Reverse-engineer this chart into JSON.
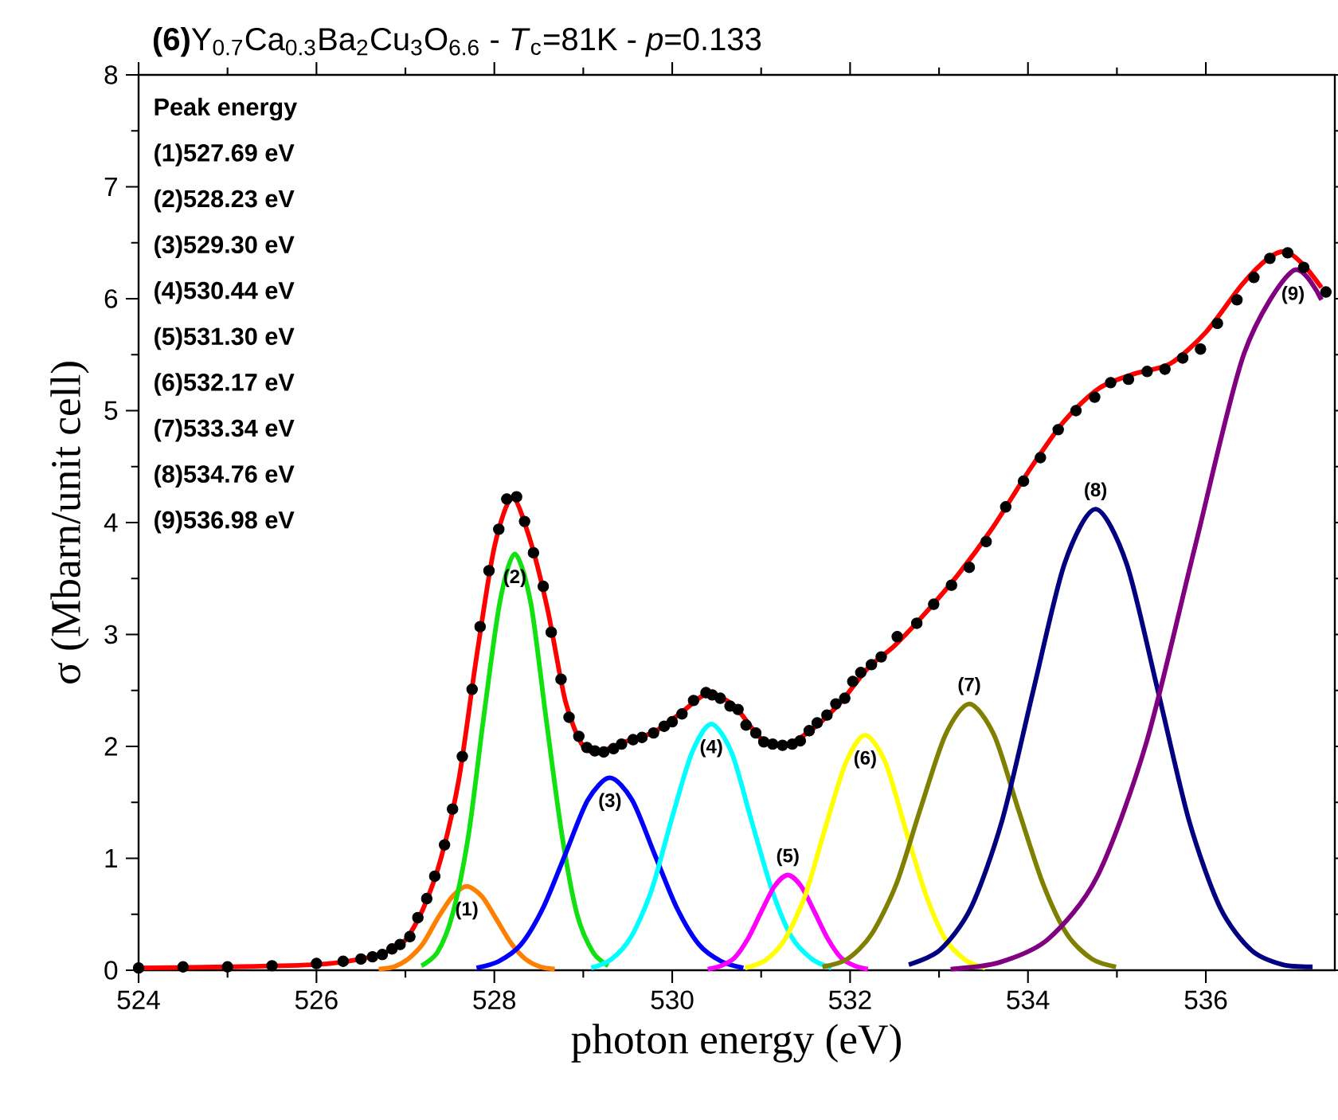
{
  "chart_data": {
    "type": "line",
    "title": "**(6)**Y$_{0.7}$Ca$_{0.3}$Ba$_{2}$Cu$_{3}$O$_{6.6}$ - *T*$_{c}$=81K - *p*=0.133",
    "xlabel": "photon energy (eV)",
    "ylabel": "σ (Mbarn/unit cell)",
    "xlim": [
      524,
      537.45
    ],
    "ylim": [
      0,
      8
    ],
    "xticks": [
      524,
      526,
      528,
      530,
      532,
      534,
      536
    ],
    "yticks": [
      0,
      1,
      2,
      3,
      4,
      5,
      6,
      7,
      8
    ],
    "annotations": [
      "Peak energy",
      "(1)527.69 eV",
      "(2)528.23 eV",
      "(3)529.30 eV",
      "(4)530.44 eV",
      "(5)531.30 eV",
      "(6)532.17 eV",
      "(7)533.34 eV",
      "(8)534.76 eV",
      "(9)536.98 eV"
    ],
    "series": [
      {
        "name": "(1)",
        "color": "#ff8000",
        "x": [
          526.7,
          526.87,
          527.03,
          527.2,
          527.36,
          527.53,
          527.69,
          527.86,
          528.02,
          528.19,
          528.35,
          528.52,
          528.68
        ],
        "values": [
          0.01,
          0.03,
          0.1,
          0.24,
          0.46,
          0.66,
          0.75,
          0.66,
          0.46,
          0.24,
          0.1,
          0.03,
          0.01
        ]
      },
      {
        "name": "(2)",
        "color": "#11e011",
        "x": [
          527.18,
          527.36,
          527.53,
          527.71,
          527.88,
          528.06,
          528.23,
          528.41,
          528.58,
          528.76,
          528.93,
          529.11,
          529.28
        ],
        "values": [
          0.04,
          0.16,
          0.5,
          1.21,
          2.26,
          3.28,
          3.72,
          3.28,
          2.26,
          1.21,
          0.5,
          0.16,
          0.04
        ]
      },
      {
        "name": "(3)",
        "color": "#0000ff",
        "x": [
          527.8,
          528.05,
          528.3,
          528.55,
          528.8,
          529.05,
          529.3,
          529.55,
          529.8,
          530.05,
          530.3,
          530.55,
          530.8
        ],
        "values": [
          0.02,
          0.08,
          0.23,
          0.56,
          1.04,
          1.52,
          1.72,
          1.52,
          1.04,
          0.56,
          0.23,
          0.08,
          0.02
        ]
      },
      {
        "name": "(4)",
        "color": "#00ffff",
        "x": [
          529.09,
          529.32,
          529.54,
          529.77,
          529.99,
          530.22,
          530.44,
          530.67,
          530.89,
          531.12,
          531.34,
          531.57,
          531.79
        ],
        "values": [
          0.02,
          0.1,
          0.3,
          0.72,
          1.34,
          1.94,
          2.2,
          1.94,
          1.34,
          0.72,
          0.3,
          0.1,
          0.02
        ]
      },
      {
        "name": "(5)",
        "color": "#ff00ff",
        "x": [
          530.4,
          530.55,
          530.7,
          530.85,
          531.0,
          531.15,
          531.3,
          531.45,
          531.6,
          531.75,
          531.9,
          532.05,
          532.2
        ],
        "values": [
          0.01,
          0.04,
          0.11,
          0.28,
          0.52,
          0.75,
          0.85,
          0.75,
          0.52,
          0.28,
          0.11,
          0.04,
          0.01
        ]
      },
      {
        "name": "(6)",
        "color": "#ffff00",
        "x": [
          530.82,
          531.05,
          531.27,
          531.5,
          531.72,
          531.95,
          532.17,
          532.4,
          532.62,
          532.85,
          533.07,
          533.3,
          533.52
        ],
        "values": [
          0.02,
          0.09,
          0.28,
          0.68,
          1.27,
          1.85,
          2.1,
          1.85,
          1.27,
          0.68,
          0.28,
          0.09,
          0.02
        ]
      },
      {
        "name": "(7)",
        "color": "#808000",
        "x": [
          531.69,
          531.97,
          532.24,
          532.52,
          532.79,
          533.07,
          533.34,
          533.62,
          533.89,
          534.17,
          534.44,
          534.72,
          534.99
        ],
        "values": [
          0.03,
          0.1,
          0.32,
          0.77,
          1.44,
          2.1,
          2.38,
          2.1,
          1.44,
          0.77,
          0.32,
          0.1,
          0.03
        ]
      },
      {
        "name": "(8)",
        "color": "#000080",
        "x": [
          532.66,
          533.01,
          533.36,
          533.71,
          534.06,
          534.41,
          534.76,
          535.11,
          535.46,
          535.81,
          536.16,
          536.51,
          536.86,
          537.2
        ],
        "values": [
          0.05,
          0.18,
          0.56,
          1.34,
          2.5,
          3.63,
          4.12,
          3.63,
          2.5,
          1.34,
          0.56,
          0.18,
          0.05,
          0.03
        ]
      },
      {
        "name": "(9)",
        "color": "#800080",
        "x": [
          533.13,
          533.68,
          534.23,
          534.78,
          535.33,
          535.88,
          536.43,
          536.98,
          537.3
        ],
        "values": [
          0.01,
          0.07,
          0.28,
          0.84,
          2.03,
          3.79,
          5.51,
          6.25,
          5.99
        ]
      },
      {
        "color": "#ff0000",
        "x": [
          524.0,
          525.0,
          526.0,
          526.5,
          526.8,
          527.0,
          527.2,
          527.4,
          527.6,
          527.8,
          528.0,
          528.2,
          528.4,
          528.6,
          528.8,
          529.0,
          529.2,
          529.5,
          529.8,
          530.1,
          530.4,
          530.7,
          531.0,
          531.3,
          531.6,
          531.9,
          532.2,
          532.5,
          532.8,
          533.2,
          533.6,
          534.0,
          534.4,
          534.8,
          535.2,
          535.6,
          536.0,
          536.4,
          536.7,
          536.9,
          537.1,
          537.3
        ],
        "values": [
          0.02,
          0.03,
          0.05,
          0.1,
          0.17,
          0.27,
          0.55,
          1.0,
          1.7,
          2.8,
          3.78,
          4.22,
          3.85,
          3.22,
          2.4,
          2.0,
          1.96,
          2.05,
          2.13,
          2.3,
          2.47,
          2.36,
          2.07,
          2.02,
          2.17,
          2.4,
          2.7,
          2.9,
          3.15,
          3.52,
          3.95,
          4.45,
          4.9,
          5.2,
          5.33,
          5.42,
          5.7,
          6.12,
          6.36,
          6.42,
          6.3,
          6.1
        ]
      },
      {
        "type": "scatter",
        "marker": "circle",
        "color": "#000000",
        "x": [
          524.0,
          524.5,
          525.0,
          525.5,
          526.0,
          526.3,
          526.5,
          526.63,
          526.74,
          526.85,
          526.94,
          527.05,
          527.14,
          527.24,
          527.33,
          527.44,
          527.53,
          527.64,
          527.75,
          527.84,
          527.94,
          528.05,
          528.14,
          528.25,
          528.34,
          528.44,
          528.55,
          528.64,
          528.75,
          528.84,
          528.95,
          529.04,
          529.13,
          529.23,
          529.34,
          529.43,
          529.56,
          529.66,
          529.79,
          529.91,
          530.0,
          530.11,
          530.24,
          530.38,
          530.45,
          530.54,
          530.65,
          530.74,
          530.83,
          530.94,
          531.03,
          531.13,
          531.24,
          531.35,
          531.44,
          531.54,
          531.63,
          531.74,
          531.84,
          531.94,
          532.03,
          532.12,
          532.24,
          532.35,
          532.53,
          532.75,
          532.94,
          533.14,
          533.34,
          533.53,
          533.75,
          533.95,
          534.14,
          534.34,
          534.54,
          534.75,
          534.93,
          535.13,
          535.34,
          535.54,
          535.74,
          535.94,
          536.13,
          536.35,
          536.54,
          536.72,
          536.92,
          537.1,
          537.35
        ],
        "values": [
          0.02,
          0.03,
          0.03,
          0.04,
          0.06,
          0.08,
          0.1,
          0.12,
          0.14,
          0.19,
          0.23,
          0.3,
          0.47,
          0.64,
          0.84,
          1.12,
          1.44,
          1.91,
          2.51,
          3.07,
          3.57,
          3.94,
          4.21,
          4.23,
          4.01,
          3.73,
          3.43,
          3.02,
          2.6,
          2.26,
          2.09,
          1.99,
          1.96,
          1.95,
          1.98,
          2.02,
          2.06,
          2.08,
          2.12,
          2.18,
          2.22,
          2.29,
          2.41,
          2.48,
          2.46,
          2.43,
          2.36,
          2.33,
          2.19,
          2.12,
          2.04,
          2.02,
          2.01,
          2.02,
          2.05,
          2.14,
          2.21,
          2.28,
          2.38,
          2.43,
          2.58,
          2.66,
          2.73,
          2.8,
          2.98,
          3.1,
          3.27,
          3.44,
          3.6,
          3.83,
          4.14,
          4.37,
          4.58,
          4.83,
          5.0,
          5.12,
          5.25,
          5.28,
          5.35,
          5.37,
          5.47,
          5.55,
          5.78,
          5.99,
          6.19,
          6.36,
          6.41,
          6.28,
          6.06
        ]
      }
    ]
  }
}
